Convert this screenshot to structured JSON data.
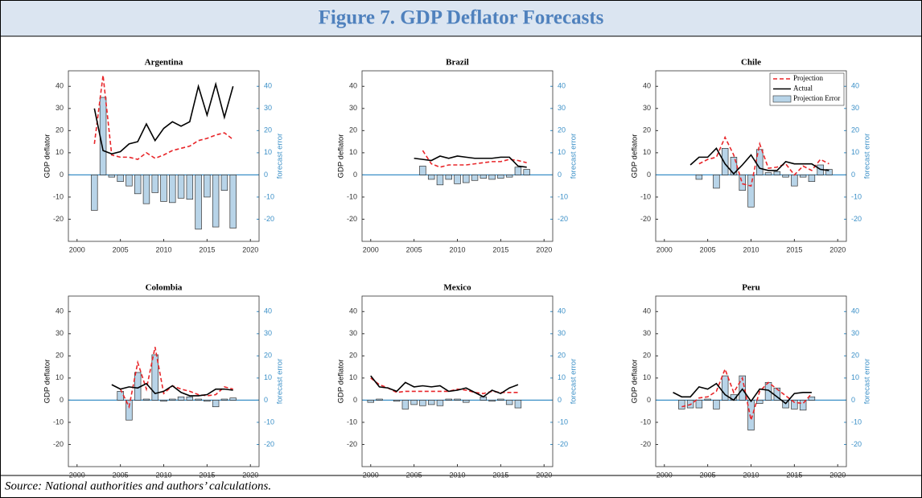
{
  "header": {
    "title": "Figure 7. GDP Deflator Forecasts"
  },
  "source": "Source:  National authorities and authors’ calculations.",
  "chart_data": [
    {
      "type": "combo",
      "title": "Argentina",
      "ylabel": "GDP deflator",
      "y2label": "forecast error",
      "x": [
        2002,
        2003,
        2004,
        2005,
        2006,
        2007,
        2008,
        2009,
        2010,
        2011,
        2012,
        2013,
        2014,
        2015,
        2016,
        2017,
        2018
      ],
      "xlim": [
        1999,
        2021
      ],
      "xticks": [
        2000,
        2005,
        2010,
        2015,
        2020
      ],
      "ylim": [
        -30,
        47
      ],
      "yticks": [
        -20,
        -10,
        0,
        10,
        20,
        30,
        40
      ],
      "y2lim": [
        -30,
        47
      ],
      "y2ticks": [
        -20,
        -10,
        0,
        10,
        20,
        30,
        40
      ],
      "series": [
        {
          "kind": "line",
          "dashed": true,
          "color": "#e8262a",
          "values": [
            14,
            45,
            9,
            8,
            8,
            7,
            10,
            7.5,
            9,
            11,
            12,
            13,
            15.5,
            16.5,
            18,
            19,
            16
          ]
        },
        {
          "kind": "line",
          "dashed": false,
          "color": "#000000",
          "values": [
            30,
            11,
            9.5,
            10.5,
            14,
            15,
            23,
            15.5,
            21,
            24,
            22,
            24,
            40,
            27,
            41,
            26,
            40
          ]
        },
        {
          "kind": "bar",
          "axis": "y2",
          "color": "#b8d4e8",
          "values": [
            -16,
            35,
            -1,
            -3,
            -5,
            -8.5,
            -13,
            -8,
            -12,
            -12.5,
            -10.5,
            -11,
            -24.5,
            -10,
            -23.5,
            -7,
            -24
          ]
        }
      ]
    },
    {
      "type": "combo",
      "title": "Brazil",
      "ylabel": "GDP deflator",
      "y2label": "forecast error",
      "x": [
        2005,
        2006,
        2007,
        2008,
        2009,
        2010,
        2011,
        2012,
        2013,
        2014,
        2015,
        2016,
        2017,
        2018
      ],
      "xlim": [
        1999,
        2021
      ],
      "xticks": [
        2000,
        2005,
        2010,
        2015,
        2020
      ],
      "ylim": [
        -30,
        47
      ],
      "yticks": [
        -20,
        -10,
        0,
        10,
        20,
        30,
        40
      ],
      "y2lim": [
        -30,
        47
      ],
      "y2ticks": [
        -20,
        -10,
        0,
        10,
        20,
        30,
        40
      ],
      "series": [
        {
          "kind": "line",
          "dashed": true,
          "color": "#e8262a",
          "values": [
            null,
            11,
            5,
            3.5,
            4.5,
            4.5,
            4.5,
            5,
            5.5,
            6,
            6,
            7,
            6.5,
            5.5
          ]
        },
        {
          "kind": "line",
          "dashed": false,
          "color": "#000000",
          "values": [
            7.5,
            7,
            6.5,
            8.5,
            7.5,
            8.5,
            8,
            7.5,
            7.5,
            7.5,
            8,
            8,
            4,
            3.5
          ]
        },
        {
          "kind": "bar",
          "axis": "y2",
          "color": "#b8d4e8",
          "values": [
            null,
            4,
            -2,
            -4.5,
            -2,
            -4,
            -3.5,
            -2.5,
            -1.5,
            -2,
            -1.5,
            -1,
            3.5,
            2.5
          ]
        }
      ]
    },
    {
      "type": "combo",
      "title": "Chile",
      "ylabel": "GDP deflator",
      "y2label": "forecast error",
      "legend": "upper right",
      "x": [
        2003,
        2004,
        2005,
        2006,
        2007,
        2008,
        2009,
        2010,
        2011,
        2012,
        2013,
        2014,
        2015,
        2016,
        2017,
        2018,
        2019
      ],
      "xlim": [
        1999,
        2021
      ],
      "xticks": [
        2000,
        2005,
        2010,
        2015,
        2020
      ],
      "ylim": [
        -30,
        47
      ],
      "yticks": [
        -20,
        -10,
        0,
        10,
        20,
        30,
        40
      ],
      "y2lim": [
        -30,
        47
      ],
      "y2ticks": [
        -20,
        -10,
        0,
        10,
        20,
        30,
        40
      ],
      "series": [
        {
          "name": "Projection",
          "kind": "line",
          "dashed": true,
          "color": "#e8262a",
          "values": [
            null,
            5,
            7,
            8,
            17,
            9,
            -4,
            -5,
            14,
            3,
            3.5,
            5,
            0,
            4,
            2,
            7,
            5
          ]
        },
        {
          "name": "Actual",
          "kind": "line",
          "dashed": false,
          "color": "#000000",
          "values": [
            4.5,
            8,
            8,
            12,
            5,
            0.5,
            4.5,
            9,
            3,
            2,
            2,
            6,
            5,
            5,
            5,
            2.5,
            2
          ]
        },
        {
          "name": "Projection Error",
          "kind": "bar",
          "axis": "y2",
          "color": "#b8d4e8",
          "values": [
            null,
            -2,
            0,
            -6,
            12,
            8,
            -7,
            -14.5,
            11.5,
            1,
            1.5,
            -1,
            -5,
            -1,
            -3,
            4.5,
            2.5
          ]
        }
      ]
    },
    {
      "type": "combo",
      "title": "Colombia",
      "ylabel": "GDP deflator",
      "y2label": "forecast error",
      "x": [
        2004,
        2005,
        2006,
        2007,
        2008,
        2009,
        2010,
        2011,
        2012,
        2013,
        2014,
        2015,
        2016,
        2017,
        2018
      ],
      "xlim": [
        1999,
        2021
      ],
      "xticks": [
        2000,
        2005,
        2010,
        2015,
        2020
      ],
      "ylim": [
        -30,
        47
      ],
      "yticks": [
        -20,
        -10,
        0,
        10,
        20,
        30,
        40
      ],
      "y2lim": [
        -30,
        47
      ],
      "y2ticks": [
        -20,
        -10,
        0,
        10,
        20,
        30,
        40
      ],
      "series": [
        {
          "kind": "line",
          "dashed": true,
          "color": "#e8262a",
          "values": [
            null,
            5,
            -3,
            17,
            5,
            24,
            3,
            6.5,
            5,
            4,
            2.5,
            2,
            2.5,
            6,
            5
          ]
        },
        {
          "kind": "line",
          "dashed": false,
          "color": "#000000",
          "values": [
            7,
            5,
            6,
            5.5,
            7.5,
            3,
            4,
            6.5,
            3.5,
            2,
            2,
            2.5,
            5,
            5,
            4.5
          ]
        },
        {
          "kind": "bar",
          "axis": "y2",
          "color": "#b8d4e8",
          "values": [
            null,
            4,
            -9,
            12.5,
            0.5,
            20.5,
            -0.5,
            0.5,
            1.5,
            1.5,
            0.5,
            -0.5,
            -3,
            0.5,
            1
          ]
        }
      ]
    },
    {
      "type": "combo",
      "title": "Mexico",
      "ylabel": "GDP deflator",
      "y2label": "forecast error",
      "x": [
        2000,
        2001,
        2002,
        2003,
        2004,
        2005,
        2006,
        2007,
        2008,
        2009,
        2010,
        2011,
        2012,
        2013,
        2014,
        2015,
        2016,
        2017
      ],
      "xlim": [
        1999,
        2021
      ],
      "xticks": [
        2000,
        2005,
        2010,
        2015,
        2020
      ],
      "ylim": [
        -30,
        47
      ],
      "yticks": [
        -20,
        -10,
        0,
        10,
        20,
        30,
        40
      ],
      "y2lim": [
        -30,
        47
      ],
      "y2ticks": [
        -20,
        -10,
        0,
        10,
        20,
        30,
        40
      ],
      "series": [
        {
          "kind": "line",
          "dashed": true,
          "color": "#e8262a",
          "values": [
            10,
            7,
            5.5,
            3.5,
            4,
            4,
            4,
            4,
            4,
            4,
            5,
            4.5,
            3.5,
            3,
            4,
            3.5,
            3.5,
            3.5
          ]
        },
        {
          "kind": "line",
          "dashed": false,
          "color": "#000000",
          "values": [
            11,
            6,
            5.5,
            4,
            8,
            6,
            6.5,
            6,
            6.5,
            4,
            4.5,
            5.5,
            3.5,
            1.5,
            4.5,
            3,
            5.5,
            7
          ]
        },
        {
          "kind": "bar",
          "axis": "y2",
          "color": "#b8d4e8",
          "values": [
            -1,
            0.5,
            0,
            -0.5,
            -4,
            -2,
            -2.5,
            -2,
            -2.5,
            0.5,
            0.5,
            -1,
            0,
            1.5,
            -0.5,
            0.5,
            -2,
            -3.5
          ]
        }
      ]
    },
    {
      "type": "combo",
      "title": "Peru",
      "ylabel": "GDP deflator",
      "y2label": "forecast error",
      "x": [
        2001,
        2002,
        2003,
        2004,
        2005,
        2006,
        2007,
        2008,
        2009,
        2010,
        2011,
        2012,
        2013,
        2014,
        2015,
        2016,
        2017
      ],
      "xlim": [
        1999,
        2021
      ],
      "xticks": [
        2000,
        2005,
        2010,
        2015,
        2020
      ],
      "ylim": [
        -30,
        47
      ],
      "yticks": [
        -20,
        -10,
        0,
        10,
        20,
        30,
        40
      ],
      "y2lim": [
        -30,
        47
      ],
      "y2ticks": [
        -20,
        -10,
        0,
        10,
        20,
        30,
        40
      ],
      "series": [
        {
          "kind": "line",
          "dashed": true,
          "color": "#e8262a",
          "values": [
            null,
            -3,
            -2,
            1,
            1.5,
            4,
            14,
            3.5,
            10,
            -9,
            4,
            8,
            5,
            2,
            -1,
            -1.5,
            3
          ]
        },
        {
          "kind": "line",
          "dashed": false,
          "color": "#000000",
          "values": [
            3.5,
            1.5,
            1.5,
            6,
            5,
            7.5,
            2.5,
            0,
            5,
            -0.5,
            5,
            4.5,
            1.5,
            -1.5,
            3,
            3.5,
            3.5
          ]
        },
        {
          "kind": "bar",
          "axis": "y2",
          "color": "#b8d4e8",
          "values": [
            null,
            -4,
            -3.5,
            -3.5,
            0.5,
            -4,
            11,
            2.5,
            11,
            -13.5,
            -1.5,
            8,
            5.5,
            -3.5,
            -4,
            -4.5,
            1.5
          ]
        }
      ]
    }
  ]
}
